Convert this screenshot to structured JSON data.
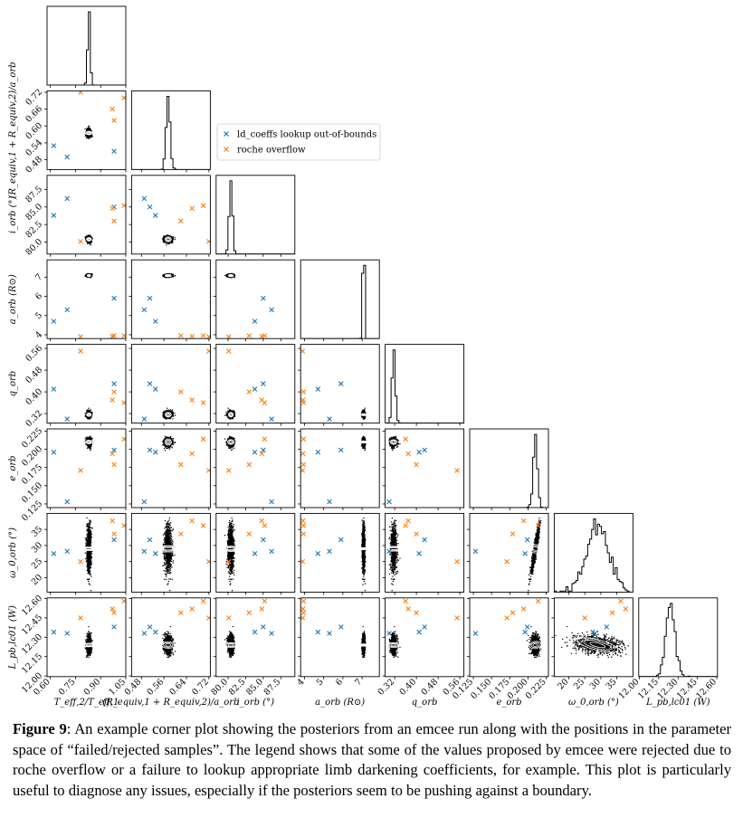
{
  "caption": {
    "label": "Figure 9",
    "text": ": An example corner plot showing the posteriors from an emcee run along with the positions in the parameter space of “failed/rejected samples”. The legend shows that some of the values proposed by emcee were rejected due to roche overflow or a failure to lookup appropriate limb darkening coefficients, for example. This plot is particularly useful to diagnose any issues, especially if the posteriors seem to be pushing against a boundary."
  },
  "legend": {
    "placement": "upper-right (beside row 2)",
    "entries": [
      {
        "label": "ld_coeffs lookup out-of-bounds",
        "color": "#1f77b4",
        "marker": "x"
      },
      {
        "label": "roche overflow",
        "color": "#ff7f0e",
        "marker": "x"
      }
    ]
  },
  "colors": {
    "ld": "#1f77b4",
    "roche": "#ff7f0e",
    "samples": "#000000",
    "contours": "#ffffff"
  },
  "chart_data": {
    "type": "scatter",
    "subtype": "corner plot (1-D histograms on diagonal, 2-D sample densities with contours off-diagonal)",
    "parameters": [
      {
        "axis_label": "T_eff,2/T_eff,1",
        "range": [
          0.58,
          1.05
        ],
        "ticks": [
          "0.60",
          "0.75",
          "0.90",
          "1.05"
        ],
        "tick_values": [
          0.6,
          0.75,
          0.9,
          1.05
        ],
        "mean": 0.83,
        "sd": 0.0065
      },
      {
        "axis_label": "(R_equiv,1 + R_equiv,2)/a_orb",
        "range": [
          0.445,
          0.725
        ],
        "ticks": [
          "0.48",
          "0.56",
          "0.64",
          "0.72"
        ],
        "tick_values": [
          0.48,
          0.56,
          0.64,
          0.72
        ],
        "y_ticks": [
          "0.48",
          "0.54",
          "0.60",
          "0.66",
          "0.72"
        ],
        "y_tick_values": [
          0.48,
          0.54,
          0.6,
          0.66,
          0.72
        ],
        "mean": 0.575,
        "sd": 0.007
      },
      {
        "axis_label": "i_orb (°)",
        "range": [
          78.3,
          89.5
        ],
        "ticks": [
          "80.0",
          "82.5",
          "85.0",
          "87.5"
        ],
        "tick_values": [
          80.0,
          82.5,
          85.0,
          87.5
        ],
        "mean": 80.4,
        "sd": 0.22
      },
      {
        "axis_label": "a_orb (R⊙)",
        "range": [
          3.8,
          7.9
        ],
        "ticks": [
          "4",
          "5",
          "6",
          "7"
        ],
        "tick_values": [
          4,
          5,
          6,
          7
        ],
        "mean": 7.08,
        "sd": 0.035
      },
      {
        "axis_label": "q_orb",
        "range": [
          0.285,
          0.575
        ],
        "ticks": [
          "0.32",
          "0.40",
          "0.48",
          "0.56"
        ],
        "tick_values": [
          0.32,
          0.4,
          0.48,
          0.56
        ],
        "mean": 0.316,
        "sd": 0.0055
      },
      {
        "axis_label": "e_orb",
        "range": [
          0.12,
          0.228
        ],
        "ticks": [
          "0.125",
          "0.150",
          "0.175",
          "0.200",
          "0.225"
        ],
        "tick_values": [
          0.125,
          0.15,
          0.175,
          0.2,
          0.225
        ],
        "mean": 0.21,
        "sd": 0.0028
      },
      {
        "axis_label": "ω_0,orb (°)",
        "range": [
          15.5,
          40.0
        ],
        "ticks": [
          "20",
          "25",
          "30",
          "35"
        ],
        "tick_values": [
          20,
          25,
          30,
          35
        ],
        "mean": 29.0,
        "sd": 3.5
      },
      {
        "axis_label": "L_pb,lc01 (W)",
        "range": [
          11.995,
          12.605
        ],
        "ticks": [
          "12.00",
          "12.15",
          "12.30",
          "12.45",
          "12.60"
        ],
        "tick_values": [
          12.0,
          12.15,
          12.3,
          12.45,
          12.6
        ],
        "mean": 12.24,
        "sd": 0.035
      }
    ],
    "correlations": [
      [
        6,
        7,
        -0.55
      ],
      [
        5,
        6,
        0.92
      ],
      [
        5,
        7,
        -0.3
      ],
      [
        2,
        6,
        0.3
      ],
      [
        0,
        6,
        0.1
      ],
      [
        0,
        7,
        -0.1
      ],
      [
        1,
        7,
        0.1
      ]
    ],
    "rejected_samples": {
      "ld_coeffs lookup out-of-bounds": [
        [
          0.62,
          0.53,
          83.8,
          4.7,
          0.41,
          0.196,
          27.5,
          12.34
        ],
        [
          0.98,
          0.51,
          85.0,
          5.9,
          0.43,
          0.199,
          31.8,
          12.38
        ],
        [
          0.7,
          0.49,
          86.2,
          5.3,
          0.3,
          0.128,
          28.2,
          12.33
        ]
      ],
      "roche overflow": [
        [
          0.78,
          0.72,
          80.1,
          3.9,
          0.55,
          0.171,
          25.0,
          12.45
        ],
        [
          0.97,
          0.66,
          84.8,
          3.92,
          0.37,
          0.194,
          37.7,
          12.52
        ],
        [
          0.98,
          0.62,
          83.0,
          3.95,
          0.4,
          0.179,
          33.6,
          12.49
        ],
        [
          1.04,
          0.7,
          85.2,
          3.95,
          0.36,
          0.214,
          36.2,
          12.58
        ]
      ]
    }
  }
}
